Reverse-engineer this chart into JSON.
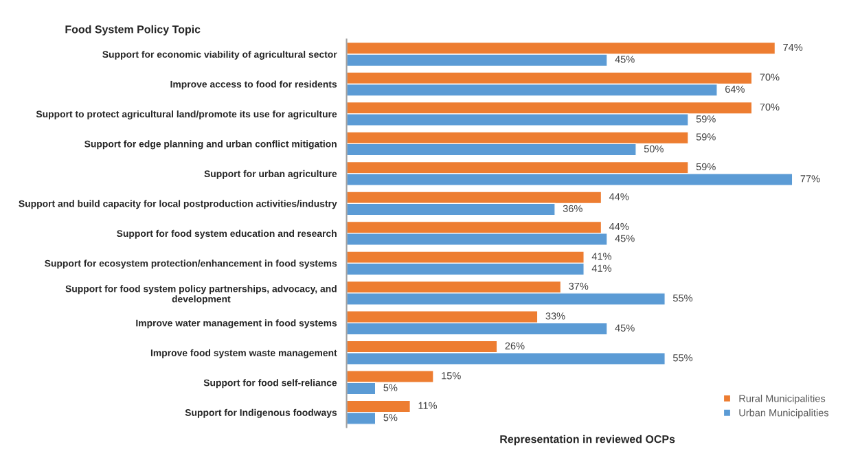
{
  "chart_data": {
    "type": "bar",
    "orientation": "horizontal",
    "ylabel": "Food System Policy Topic",
    "xlabel": "Representation in reviewed OCPs",
    "categories": [
      "Support for economic viability of agricultural sector",
      "Improve access to food for residents",
      "Support to protect agricultural land/promote its use for agriculture",
      "Support for edge planning and urban conflict mitigation",
      "Support for urban agriculture",
      "Support and build capacity for local postproduction activities/industry",
      "Support for food system education and research",
      "Support for ecosystem protection/enhancement in food systems",
      "Support for food system policy partnerships, advocacy, and\ndevelopment",
      "Improve water management in food systems",
      "Improve food system waste management",
      "Support for food self-reliance",
      "Support for Indigenous foodways"
    ],
    "series": [
      {
        "name": "Rural Municipalities",
        "color": "#ed7d31",
        "values": [
          74,
          70,
          70,
          59,
          59,
          44,
          44,
          41,
          37,
          33,
          26,
          15,
          11
        ],
        "value_labels": [
          "74%",
          "70%",
          "70%",
          "59%",
          "59%",
          "44%",
          "44%",
          "41%",
          "37%",
          "33%",
          "26%",
          "15%",
          "11%"
        ]
      },
      {
        "name": "Urban Municipalities",
        "color": "#5b9bd5",
        "values": [
          45,
          64,
          59,
          50,
          77,
          36,
          45,
          41,
          55,
          45,
          55,
          5,
          5
        ],
        "value_labels": [
          "45%",
          "64%",
          "59%",
          "50%",
          "77%",
          "36%",
          "45%",
          "41%",
          "55%",
          "45%",
          "55%",
          "5%",
          "5%"
        ]
      }
    ],
    "legend": "bottom right",
    "grid": false
  }
}
